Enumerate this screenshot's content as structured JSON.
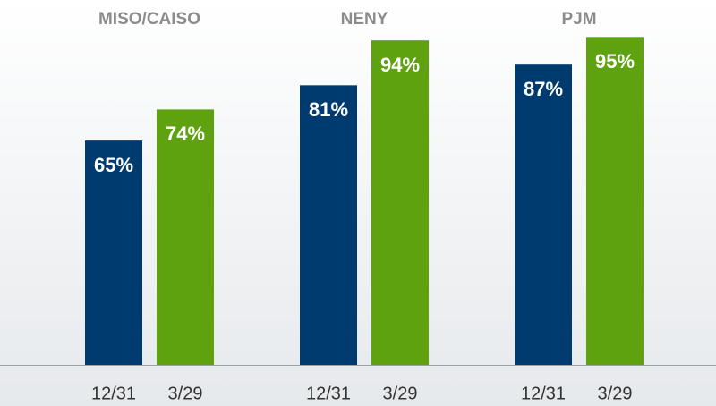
{
  "chart_data": {
    "type": "grouped_bar",
    "categories": [
      "MISO/CAISO",
      "NENY",
      "PJM"
    ],
    "series": [
      {
        "name": "12/31",
        "color": "#003b6f",
        "values": [
          65,
          81,
          87
        ],
        "value_labels": [
          "65%",
          "81%",
          "87%"
        ]
      },
      {
        "name": "3/29",
        "color": "#5ea30f",
        "values": [
          74,
          94,
          95
        ],
        "value_labels": [
          "74%",
          "94%",
          "95%"
        ]
      }
    ]
  }
}
